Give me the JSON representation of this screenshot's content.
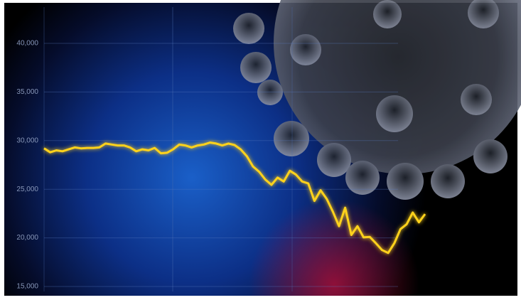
{
  "chart_data": {
    "type": "line",
    "categories": [
      null,
      null,
      null,
      null,
      null,
      null,
      null,
      null,
      null,
      null,
      null,
      null,
      null,
      null,
      null,
      null,
      null,
      null,
      null,
      null,
      null,
      null,
      null,
      null,
      null,
      null,
      null,
      null,
      null,
      null,
      null,
      null,
      null,
      null,
      null,
      null,
      null,
      null,
      null,
      null,
      null,
      null,
      null,
      null,
      null,
      null,
      null,
      null,
      null,
      null,
      null,
      null,
      null,
      null,
      null,
      null,
      null,
      null,
      null,
      null,
      null,
      null,
      null
    ],
    "series": [
      {
        "color": "#ffd21a",
        "values": [
          29200,
          28800,
          29000,
          28900,
          29100,
          29300,
          29200,
          29250,
          29250,
          29300,
          29700,
          29600,
          29500,
          29500,
          29300,
          28900,
          29100,
          29000,
          29250,
          28700,
          28750,
          29100,
          29600,
          29500,
          29300,
          29500,
          29600,
          29800,
          29700,
          29500,
          29700,
          29550,
          29100,
          28400,
          27350,
          26800,
          26000,
          25450,
          26200,
          25800,
          26900,
          26500,
          25800,
          25600,
          23800,
          24900,
          24000,
          22700,
          21200,
          23100,
          20300,
          21200,
          20050,
          20100,
          19450,
          18750,
          18450,
          19450,
          20900,
          21400,
          22600,
          21600,
          22450
        ]
      }
    ],
    "ylim": [
      15000,
      40000
    ],
    "yticks": [
      {
        "value": 15000,
        "label": "15,000"
      },
      {
        "value": 20000,
        "label": "20,000"
      },
      {
        "value": 25000,
        "label": "25,000"
      },
      {
        "value": 30000,
        "label": "30,000"
      },
      {
        "value": 35000,
        "label": "35,000"
      },
      {
        "value": 40000,
        "label": "40,000"
      }
    ],
    "grid": true
  }
}
